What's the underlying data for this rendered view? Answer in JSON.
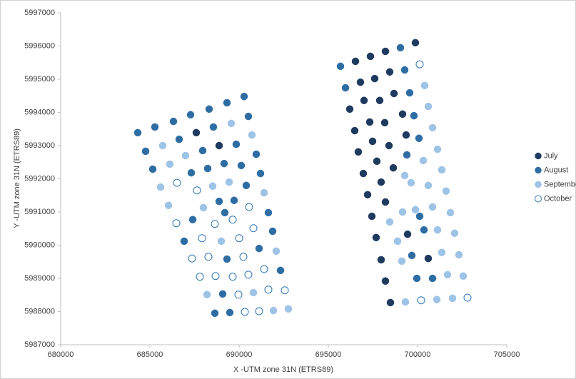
{
  "chart_data": {
    "type": "scatter",
    "xlabel": "X -UTM zone 31N (ETRS89)",
    "ylabel": "Y -UTM zone 31N (ETRS89)",
    "xlim": [
      680000,
      705000
    ],
    "ylim": [
      5987000,
      5997000
    ],
    "xticks": [
      680000,
      685000,
      690000,
      695000,
      700000,
      705000
    ],
    "yticks": [
      5987000,
      5988000,
      5989000,
      5990000,
      5991000,
      5992000,
      5993000,
      5994000,
      5995000,
      5996000,
      5997000
    ],
    "grid": false,
    "legend": "right",
    "series": [
      {
        "name": "July",
        "color": "#1f3a5f",
        "filled": true,
        "x": [
          687600,
          688880,
          696520,
          697360,
          698200,
          699880,
          696800,
          697600,
          698440,
          696200,
          697000,
          697880,
          698680,
          696480,
          697320,
          698160,
          699160,
          696680,
          697480,
          698400,
          699360,
          696960,
          697720,
          698640,
          697200,
          697960,
          697440,
          698200,
          697680,
          699440,
          697960,
          700600,
          698200,
          698480
        ],
        "y": [
          5993390,
          5993000,
          5995540,
          5995690,
          5995840,
          5996100,
          5994910,
          5995020,
          5995220,
          5994100,
          5994360,
          5994360,
          5994570,
          5993450,
          5993710,
          5993690,
          5993950,
          5992810,
          5993130,
          5993000,
          5993320,
          5992160,
          5992530,
          5992330,
          5991520,
          5991900,
          5990870,
          5991300,
          5990230,
          5990330,
          5989560,
          5989600,
          5988920,
          5988270
        ]
      },
      {
        "name": "August",
        "color": "#2e6da4",
        "filled": true,
        "x": [
          684320,
          685280,
          686320,
          687280,
          688320,
          689320,
          690280,
          684760,
          686640,
          688560,
          690520,
          685160,
          687960,
          689840,
          687320,
          688240,
          689160,
          690120,
          690960,
          690400,
          691200,
          688880,
          689720,
          686920,
          687400,
          689200,
          691640,
          691880,
          689320,
          691120,
          692320,
          688640,
          689080,
          689480,
          695680,
          699040,
          695960,
          699280,
          699560,
          699800,
          700080,
          699400,
          700120,
          700360,
          699680,
          699960,
          700840
        ],
        "y": [
          5993390,
          5993560,
          5993730,
          5993930,
          5994100,
          5994290,
          5994480,
          5992830,
          5993190,
          5993560,
          5993880,
          5992290,
          5992850,
          5993040,
          5992180,
          5992310,
          5992460,
          5992400,
          5992740,
          5991800,
          5992160,
          5991320,
          5991350,
          5990120,
          5990770,
          5990980,
          5990980,
          5990420,
          5989580,
          5989900,
          5989240,
          5987950,
          5988530,
          5987970,
          5995390,
          5995950,
          5994740,
          5995280,
          5994590,
          5993900,
          5993220,
          5992720,
          5990870,
          5990460,
          5989690,
          5989000,
          5989000
        ]
      },
      {
        "name": "September",
        "color": "#9dc3e6",
        "filled": true,
        "x": [
          685720,
          689560,
          686120,
          687000,
          690720,
          685600,
          686040,
          688520,
          689440,
          688000,
          691400,
          689000,
          692080,
          688200,
          690800,
          691920,
          692760,
          700400,
          700600,
          700840,
          700320,
          701120,
          699280,
          699640,
          700600,
          701360,
          699160,
          699880,
          700840,
          701600,
          698440,
          701120,
          701840,
          698880,
          701360,
          702080,
          699120,
          701680,
          702320,
          699320,
          701080,
          701960,
          702560
        ],
        "y": [
          5993000,
          5993670,
          5992440,
          5992700,
          5993320,
          5991750,
          5991200,
          5991780,
          5991900,
          5991130,
          5991580,
          5990120,
          5989820,
          5988510,
          5988570,
          5988030,
          5988080,
          5994810,
          5994180,
          5993540,
          5992550,
          5992890,
          5992100,
          5991880,
          5991800,
          5992270,
          5991000,
          5991070,
          5991150,
          5991630,
          5990700,
          5990460,
          5990980,
          5990120,
          5989780,
          5990360,
          5989520,
          5989110,
          5989710,
          5988290,
          5988360,
          5988400,
          5989070
        ]
      },
      {
        "name": "October",
        "color": "#2e75b6",
        "filled": false,
        "x": [
          686520,
          687640,
          686480,
          688640,
          689640,
          690560,
          687360,
          687920,
          690000,
          690800,
          687800,
          688280,
          690240,
          688680,
          689640,
          690520,
          691400,
          689960,
          691640,
          692560,
          690320,
          691120,
          700120,
          700200,
          702800
        ],
        "y": [
          5991880,
          5991650,
          5990660,
          5990640,
          5990770,
          5991150,
          5989600,
          5990210,
          5990210,
          5990510,
          5989050,
          5989650,
          5989650,
          5989070,
          5989050,
          5989110,
          5989280,
          5988510,
          5988660,
          5988640,
          5987990,
          5988010,
          5995450,
          5988340,
          5988420
        ]
      }
    ]
  }
}
